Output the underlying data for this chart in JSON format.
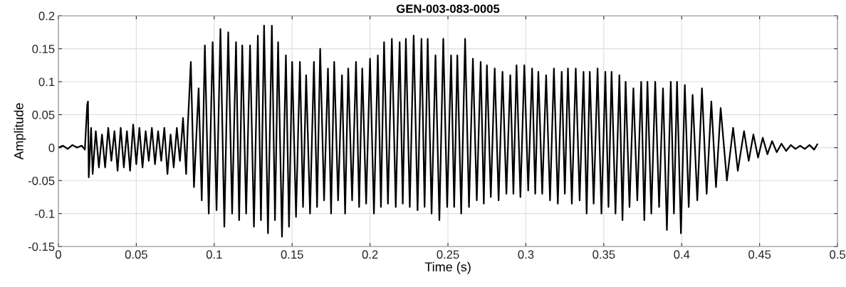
{
  "chart_data": {
    "type": "line",
    "title": "GEN-003-083-0005",
    "xlabel": "Time (s)",
    "ylabel": "Amplitude",
    "xlim": [
      0,
      0.5
    ],
    "ylim": [
      -0.15,
      0.2
    ],
    "xticks": [
      0,
      0.05,
      0.1,
      0.15,
      0.2,
      0.25,
      0.3,
      0.35,
      0.4,
      0.45,
      0.5
    ],
    "yticks": [
      {
        "value": -0.15,
        "label": "-0.15"
      },
      {
        "value": -0.1,
        "label": "-0.1"
      },
      {
        "value": -0.05,
        "label": "-0.05"
      },
      0,
      0.05,
      0.1,
      0.15,
      0.2
    ],
    "grid": true,
    "legend": false,
    "series": [
      {
        "color": "#000000",
        "x": [
          0,
          0.003,
          0.006,
          0.009,
          0.012,
          0.015,
          0.017,
          0.0185,
          0.019,
          0.0195,
          0.021,
          0.022,
          0.024,
          0.026,
          0.028,
          0.03,
          0.032,
          0.034,
          0.036,
          0.038,
          0.04,
          0.042,
          0.044,
          0.046,
          0.048,
          0.05,
          0.052,
          0.054,
          0.056,
          0.058,
          0.06,
          0.062,
          0.064,
          0.066,
          0.068,
          0.07,
          0.072,
          0.074,
          0.076,
          0.078,
          0.08,
          0.082,
          0.083,
          0.085,
          0.087,
          0.09,
          0.092,
          0.094,
          0.0965,
          0.099,
          0.1015,
          0.104,
          0.1065,
          0.109,
          0.1115,
          0.114,
          0.116,
          0.118,
          0.1205,
          0.123,
          0.1255,
          0.128,
          0.13,
          0.132,
          0.1345,
          0.137,
          0.139,
          0.141,
          0.1435,
          0.146,
          0.148,
          0.15,
          0.1525,
          0.155,
          0.157,
          0.159,
          0.1615,
          0.164,
          0.166,
          0.168,
          0.1705,
          0.173,
          0.175,
          0.177,
          0.1795,
          0.182,
          0.184,
          0.186,
          0.1885,
          0.191,
          0.193,
          0.195,
          0.1975,
          0.2,
          0.2025,
          0.205,
          0.207,
          0.209,
          0.2115,
          0.214,
          0.2165,
          0.219,
          0.221,
          0.223,
          0.2255,
          0.228,
          0.2305,
          0.233,
          0.235,
          0.237,
          0.2395,
          0.242,
          0.2445,
          0.247,
          0.2495,
          0.252,
          0.254,
          0.256,
          0.2585,
          0.261,
          0.2635,
          0.266,
          0.2685,
          0.271,
          0.273,
          0.275,
          0.2775,
          0.28,
          0.2825,
          0.285,
          0.2875,
          0.29,
          0.292,
          0.294,
          0.2965,
          0.299,
          0.3015,
          0.304,
          0.306,
          0.308,
          0.3105,
          0.313,
          0.3155,
          0.318,
          0.3205,
          0.323,
          0.325,
          0.327,
          0.3295,
          0.332,
          0.3345,
          0.337,
          0.339,
          0.341,
          0.3435,
          0.346,
          0.3485,
          0.351,
          0.353,
          0.355,
          0.3575,
          0.36,
          0.362,
          0.364,
          0.3665,
          0.369,
          0.3715,
          0.374,
          0.376,
          0.378,
          0.3805,
          0.383,
          0.3855,
          0.388,
          0.3905,
          0.393,
          0.395,
          0.397,
          0.3995,
          0.402,
          0.4045,
          0.407,
          0.41,
          0.413,
          0.416,
          0.419,
          0.422,
          0.425,
          0.429,
          0.433,
          0.436,
          0.44,
          0.443,
          0.446,
          0.449,
          0.452,
          0.455,
          0.458,
          0.461,
          0.464,
          0.467,
          0.47,
          0.473,
          0.476,
          0.479,
          0.482,
          0.485,
          0.487
        ],
        "values": [
          0,
          0.003,
          -0.002,
          0.004,
          0,
          0.003,
          -0.003,
          0.065,
          0.07,
          -0.045,
          0.03,
          -0.04,
          0.025,
          -0.03,
          0.02,
          -0.03,
          0.03,
          -0.02,
          0.025,
          -0.035,
          0.03,
          -0.03,
          0.025,
          -0.035,
          0.035,
          -0.025,
          0.03,
          -0.03,
          0.025,
          -0.02,
          0.03,
          -0.025,
          0.025,
          -0.02,
          0.03,
          -0.04,
          0.02,
          -0.03,
          0.03,
          -0.02,
          0.045,
          -0.04,
          0.03,
          0.13,
          -0.06,
          0.09,
          -0.08,
          0.155,
          -0.1,
          0.16,
          -0.095,
          0.18,
          -0.12,
          0.175,
          -0.1,
          0.16,
          -0.11,
          0.155,
          -0.1,
          0.155,
          -0.12,
          0.17,
          -0.11,
          0.185,
          -0.13,
          0.185,
          -0.11,
          0.16,
          -0.135,
          0.14,
          -0.12,
          0.13,
          -0.105,
          0.13,
          -0.09,
          0.11,
          -0.1,
          0.13,
          -0.09,
          0.15,
          -0.08,
          0.12,
          -0.1,
          0.13,
          -0.08,
          0.11,
          -0.1,
          0.12,
          -0.08,
          0.13,
          -0.09,
          0.12,
          -0.085,
          0.135,
          -0.1,
          0.14,
          -0.09,
          0.16,
          -0.085,
          0.165,
          -0.09,
          0.16,
          -0.085,
          0.165,
          -0.09,
          0.17,
          -0.095,
          0.165,
          -0.09,
          0.165,
          -0.1,
          0.14,
          -0.11,
          0.165,
          -0.09,
          0.14,
          -0.09,
          0.14,
          -0.1,
          0.165,
          -0.09,
          0.135,
          -0.08,
          0.13,
          -0.085,
          0.125,
          -0.075,
          0.12,
          -0.08,
          0.115,
          -0.07,
          0.11,
          -0.07,
          0.125,
          -0.075,
          0.125,
          -0.065,
          0.12,
          -0.07,
          0.115,
          -0.07,
          0.11,
          -0.08,
          0.12,
          -0.085,
          0.115,
          -0.07,
          0.12,
          -0.085,
          0.12,
          -0.08,
          0.115,
          -0.1,
          0.115,
          -0.085,
          0.12,
          -0.1,
          0.115,
          -0.09,
          0.115,
          -0.1,
          0.11,
          -0.11,
          0.1,
          -0.09,
          0.09,
          -0.08,
          0.1,
          -0.11,
          0.1,
          -0.1,
          0.1,
          -0.09,
          0.09,
          -0.125,
          0.1,
          -0.1,
          0.1,
          -0.13,
          0.095,
          -0.09,
          0.08,
          -0.08,
          0.09,
          -0.07,
          0.07,
          -0.06,
          0.06,
          -0.05,
          0.03,
          -0.035,
          0.025,
          -0.02,
          0.02,
          -0.015,
          0.015,
          -0.01,
          0.01,
          -0.007,
          0.006,
          -0.005,
          0.004,
          -0.002,
          0.003,
          -0.002,
          0.004,
          -0.003,
          0.005
        ]
      }
    ]
  }
}
